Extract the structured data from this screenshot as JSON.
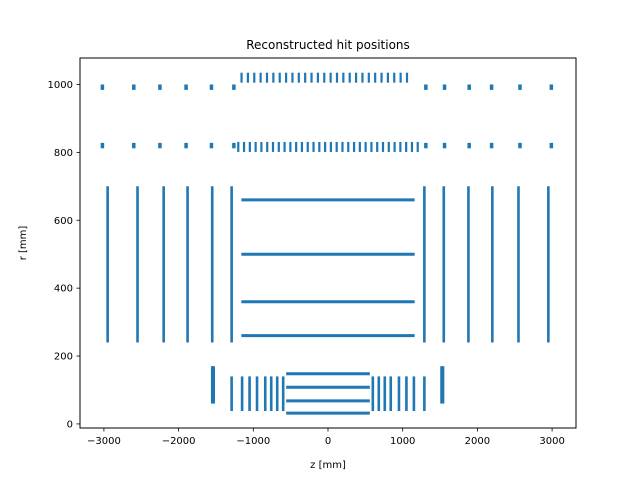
{
  "chart_data": {
    "type": "scatter",
    "title": "Reconstructed hit positions",
    "xlabel": "z [mm]",
    "ylabel": "r [mm]",
    "xlim": [
      -3320,
      3320
    ],
    "ylim": [
      -12,
      1078
    ],
    "xticks": [
      -3000,
      -2000,
      -1000,
      0,
      1000,
      2000,
      3000
    ],
    "yticks": [
      0,
      200,
      400,
      600,
      800,
      1000
    ],
    "grid": false,
    "series": [
      {
        "color": "#1f77b4",
        "groups": [
          {
            "kind": "barrel",
            "z_range": [
              -560,
              560
            ],
            "r": [
              32,
              68,
              108,
              148
            ]
          },
          {
            "kind": "endcap",
            "z": [
              -1290,
              -1150,
              -1050,
              -950,
              -840,
              -760,
              -680,
              -600,
              600,
              680,
              760,
              840,
              950,
              1050,
              1150,
              1290
            ],
            "r_range": [
              38,
              140
            ]
          },
          {
            "kind": "endcap",
            "z": [
              -1530,
              -1550,
              1520,
              1540
            ],
            "r_range": [
              60,
              170
            ]
          },
          {
            "kind": "barrel",
            "z_range": [
              -1160,
              1160
            ],
            "r": [
              260,
              360,
              500,
              660
            ]
          },
          {
            "kind": "endcap",
            "z": [
              -2950,
              -2550,
              -2200,
              -1880,
              -1550,
              -1290,
              1290,
              1550,
              1880,
              2200,
              2550,
              2950
            ],
            "r_range": [
              240,
              700
            ]
          },
          {
            "kind": "endcap",
            "z": [
              -3020,
              -2600,
              -2250,
              -1900,
              -1560,
              -1260,
              1310,
              1560,
              1890,
              2190,
              2570,
              2990
            ],
            "r_range": [
              812,
              828
            ]
          },
          {
            "kind": "barrel",
            "z_range": [
              -1240,
              1240
            ],
            "r": [
              816
            ],
            "segments": 32
          },
          {
            "kind": "endcap",
            "z": [
              -3020,
              -2600,
              -2250,
              -1900,
              -1560,
              -1260,
              1310,
              1560,
              1890,
              2190,
              2570,
              2990
            ],
            "r_range": [
              984,
              1000
            ]
          },
          {
            "kind": "barrel",
            "z_range": [
              -1200,
              1100
            ],
            "r": [
              1020
            ],
            "segments": 27
          }
        ]
      }
    ]
  }
}
